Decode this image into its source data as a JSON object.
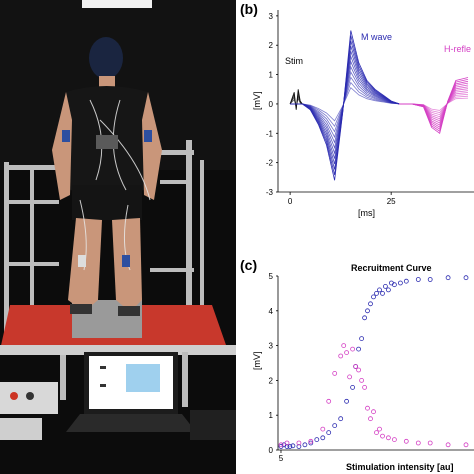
{
  "panel_b": {
    "label": "(b)",
    "ylabel": "[mV]",
    "xlabel": "[ms]",
    "annotations": {
      "stim": "Stim",
      "m_wave": "M wave",
      "h_reflex": "H-refle"
    },
    "y_ticks": [
      "3",
      "2",
      "1",
      "0",
      "-1",
      "-2",
      "-3"
    ],
    "x_ticks": [
      "0",
      "25"
    ]
  },
  "panel_c": {
    "label": "(c)",
    "title": "Recruitment Curve",
    "ylabel": "[mV]",
    "xlabel": "Stimulation intensity [au]",
    "y_ticks": [
      "5",
      "4",
      "3",
      "2",
      "1",
      "0"
    ],
    "x_ticks": [
      "5"
    ]
  },
  "colors": {
    "m_wave": "#2b2bb0",
    "h_reflex": "#d43fc4",
    "stim": "#111111"
  },
  "chart_data": [
    {
      "type": "line",
      "panel": "b",
      "xlabel": "[ms]",
      "ylabel": "[mV]",
      "xlim": [
        -3,
        45
      ],
      "ylim": [
        -3,
        3.2
      ],
      "series": [
        {
          "name": "Stim",
          "x": [
            0,
            1,
            1.5,
            2,
            2.5,
            3
          ],
          "y": [
            0,
            0.4,
            -0.2,
            0.5,
            0.1,
            0
          ]
        },
        {
          "name": "M wave",
          "x": [
            0,
            3,
            5,
            7,
            9,
            11,
            13,
            15,
            17,
            19,
            21,
            23,
            25,
            27
          ],
          "y": [
            0,
            0,
            -0.2,
            -0.7,
            -1.4,
            -2.6,
            -0.3,
            2.5,
            1.4,
            0.8,
            0.5,
            0.3,
            0.1,
            0
          ]
        },
        {
          "name": "H-reflex",
          "x": [
            27,
            30,
            33,
            35,
            37,
            39,
            41,
            44
          ],
          "y": [
            0,
            0,
            -0.1,
            -0.8,
            -1.0,
            0.1,
            0.8,
            0.9
          ]
        }
      ]
    },
    {
      "type": "scatter",
      "panel": "c",
      "title": "Recruitment Curve",
      "xlabel": "Stimulation intensity [au]",
      "ylabel": "[mV]",
      "xlim": [
        4.5,
        37
      ],
      "ylim": [
        0,
        5
      ],
      "series": [
        {
          "name": "M wave",
          "x": [
            5,
            5.5,
            6,
            6.5,
            7,
            8,
            9,
            10,
            11,
            12,
            13,
            14,
            15,
            16,
            17,
            17.5,
            18,
            18.5,
            19,
            19.5,
            20,
            20.5,
            21,
            21.5,
            22,
            22.5,
            23,
            23.5,
            24,
            25,
            26,
            28,
            30,
            33,
            36
          ],
          "y": [
            0.1,
            0.15,
            0.1,
            0.1,
            0.12,
            0.1,
            0.15,
            0.2,
            0.3,
            0.35,
            0.5,
            0.7,
            0.9,
            1.4,
            1.8,
            2.4,
            2.9,
            3.2,
            3.8,
            4.0,
            4.2,
            4.4,
            4.5,
            4.6,
            4.5,
            4.7,
            4.6,
            4.8,
            4.75,
            4.8,
            4.85,
            4.9,
            4.9,
            4.95,
            4.95
          ]
        },
        {
          "name": "H-reflex",
          "x": [
            5,
            6,
            8,
            10,
            12,
            13,
            14,
            15,
            15.5,
            16,
            16.5,
            17,
            17.5,
            18,
            18.5,
            19,
            19.5,
            20,
            20.5,
            21,
            21.5,
            22,
            23,
            24,
            26,
            28,
            30,
            33,
            36
          ],
          "y": [
            0.15,
            0.2,
            0.2,
            0.25,
            0.6,
            1.4,
            2.2,
            2.7,
            3.0,
            2.8,
            2.1,
            2.9,
            2.4,
            2.3,
            2.0,
            1.8,
            1.2,
            0.9,
            1.1,
            0.5,
            0.6,
            0.4,
            0.35,
            0.3,
            0.25,
            0.2,
            0.2,
            0.15,
            0.15
          ]
        }
      ]
    }
  ]
}
